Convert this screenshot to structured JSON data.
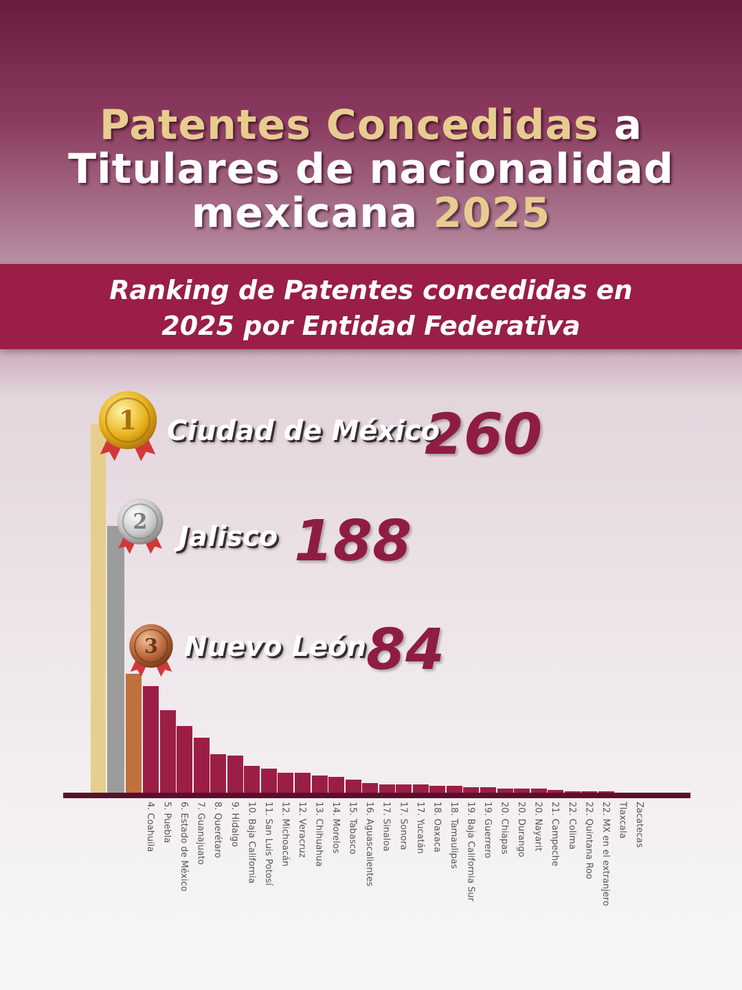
{
  "title": {
    "line1_highlight": "Patentes Concedidas",
    "line1_rest": " a",
    "line2": "Titulares de nacionalidad",
    "line3": "mexicana ",
    "year": "2025"
  },
  "subtitle": {
    "line1": "Ranking de Patentes concedidas en",
    "line2": "2025 por Entidad Federativa"
  },
  "podium": [
    {
      "rank": "1",
      "name": "Ciudad de México",
      "value": "260",
      "color": "#e6cf8e"
    },
    {
      "rank": "2",
      "name": "Jalisco",
      "value": "188",
      "color": "#9c9c9c"
    },
    {
      "rank": "3",
      "name": "Nuevo León",
      "value": "84",
      "color": "#c0703c"
    }
  ],
  "chart_data": {
    "type": "bar",
    "title": "Ranking de Patentes concedidas en 2025 por Entidad Federativa",
    "bar_color": "#9b1f45",
    "categories": [
      "Ciudad de México",
      "Jalisco",
      "Nuevo León",
      "4. Coahuila",
      "5. Puebla",
      "6. Estado de México",
      "7. Guanajuato",
      "8. Querétaro",
      "9. Hidalgo",
      "10. Baja California",
      "11. San Luis Potosí",
      "12. Michoacán",
      "12. Veracruz",
      "13. Chihuahua",
      "14. Morelos",
      "15. Tabasco",
      "16. Aguascalientes",
      "17. Sinaloa",
      "17. Sonora",
      "17. Yucatán",
      "18. Oaxaca",
      "18. Tamaulipas",
      "19. Baja California Sur",
      "19. Guerrero",
      "20. Chiapas",
      "20. Durango",
      "20. Nayarit",
      "21. Campeche",
      "22. Colima",
      "22. Quintana Roo",
      "22. MX en el extranjero",
      "Tlaxcala",
      "Zacatecas"
    ],
    "values": [
      260,
      188,
      84,
      75,
      58,
      47,
      39,
      27,
      26,
      19,
      17,
      14,
      14,
      12,
      11,
      9,
      7,
      6,
      6,
      6,
      5,
      5,
      4,
      4,
      3,
      3,
      3,
      2,
      1,
      1,
      1,
      0,
      0
    ],
    "ylim": [
      0,
      260
    ]
  }
}
